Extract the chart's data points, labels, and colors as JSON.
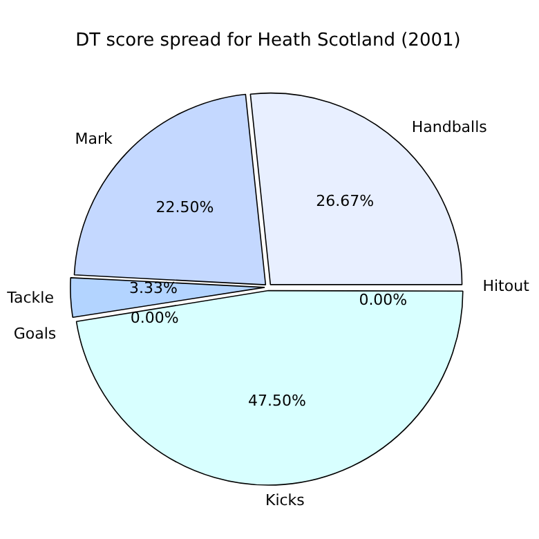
{
  "chart_data": {
    "type": "pie",
    "title": "DT score spread for Heath Scotland (2001)",
    "categories": [
      "Handballs",
      "Mark",
      "Tackle",
      "Goals",
      "Kicks",
      "Hitout"
    ],
    "values": [
      26.67,
      22.5,
      3.33,
      0,
      47.5,
      0
    ],
    "colors": [
      "#e8efff",
      "#c4d8ff",
      "#b3d4ff",
      "#c0e0ff",
      "#d8ffff",
      "#e0f0ff"
    ],
    "value_labels": [
      "26.67%",
      "22.50%",
      "3.33%",
      "0.00%",
      "47.50%",
      "0.00%"
    ],
    "legend": false
  }
}
